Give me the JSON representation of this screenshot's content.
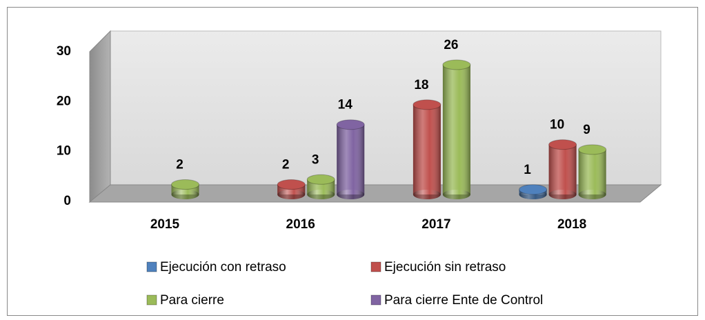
{
  "chart_data": {
    "type": "bar3d",
    "categories": [
      "2015",
      "2016",
      "2017",
      "2018"
    ],
    "series": [
      {
        "name": "Ejecución con retraso",
        "color": "#4f81bd",
        "values": [
          null,
          null,
          null,
          1
        ]
      },
      {
        "name": "Ejecución sin retraso",
        "color": "#c0504d",
        "values": [
          null,
          2,
          18,
          10
        ]
      },
      {
        "name": "Para cierre",
        "color": "#9bbb59",
        "values": [
          2,
          3,
          26,
          9
        ]
      },
      {
        "name": "Para cierre Ente de Control",
        "color": "#8064a2",
        "values": [
          null,
          14,
          null,
          null
        ]
      }
    ],
    "ylim": [
      0,
      30
    ],
    "yticks": [
      0,
      10,
      20,
      30
    ],
    "legend": "bottom"
  }
}
